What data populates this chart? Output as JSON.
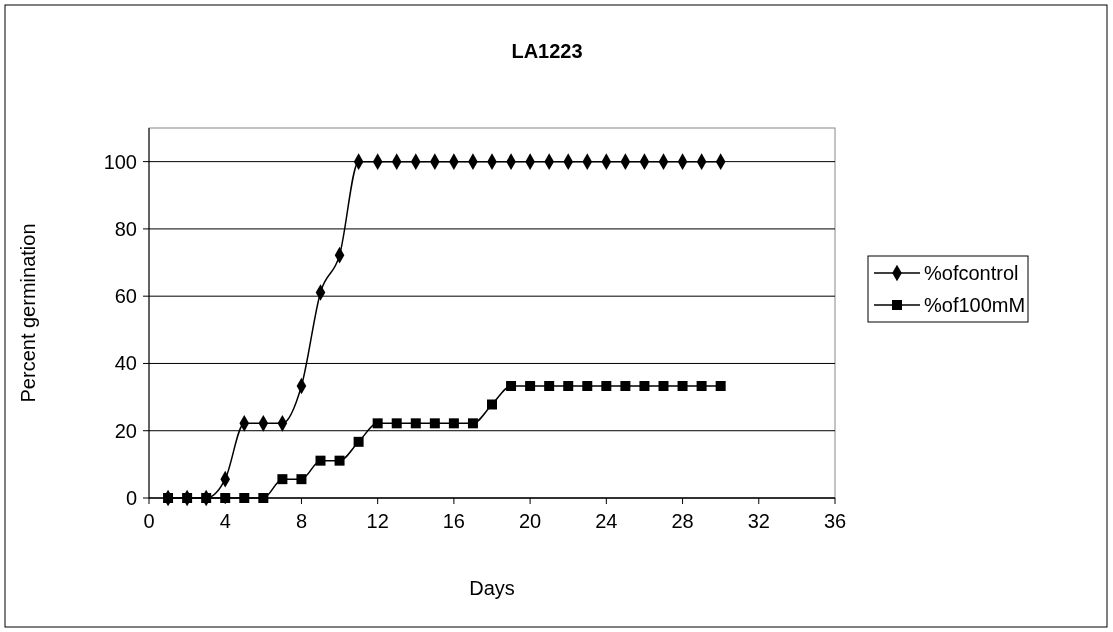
{
  "chart_data": {
    "type": "line",
    "title": "LA1223",
    "xlabel": "Days",
    "ylabel": "Percent germination",
    "xlim": [
      0,
      36
    ],
    "xticks": [
      0,
      4,
      8,
      12,
      16,
      20,
      24,
      28,
      32,
      36
    ],
    "ylim": [
      0,
      110
    ],
    "yticks": [
      0,
      20,
      40,
      60,
      80,
      100
    ],
    "grid": "y",
    "legend": "right",
    "line_style": "solid",
    "x": [
      1,
      2,
      3,
      4,
      5,
      6,
      7,
      8,
      9,
      10,
      11,
      12,
      13,
      14,
      15,
      16,
      17,
      18,
      19,
      20,
      21,
      22,
      23,
      24,
      25,
      26,
      27,
      28,
      29,
      30
    ],
    "series": [
      {
        "name": "%ofcontrol",
        "color": "#000000",
        "marker": "diamond",
        "values": [
          0,
          0,
          0,
          5.6,
          22.2,
          22.2,
          22.2,
          33.3,
          61.1,
          72.2,
          100,
          100,
          100,
          100,
          100,
          100,
          100,
          100,
          100,
          100,
          100,
          100,
          100,
          100,
          100,
          100,
          100,
          100,
          100,
          100
        ]
      },
      {
        "name": "%of100mM",
        "color": "#000000",
        "marker": "square",
        "values": [
          0,
          0,
          0,
          0,
          0,
          0,
          5.6,
          5.6,
          11.1,
          11.1,
          16.7,
          22.2,
          22.2,
          22.2,
          22.2,
          22.2,
          22.2,
          27.8,
          33.3,
          33.3,
          33.3,
          33.3,
          33.3,
          33.3,
          33.3,
          33.3,
          33.3,
          33.3,
          33.3,
          33.3
        ]
      }
    ]
  }
}
